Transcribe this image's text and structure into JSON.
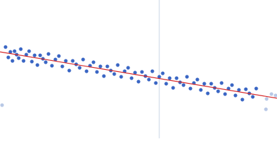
{
  "chart_data": {
    "type": "scatter",
    "xlim": [
      0,
      400
    ],
    "ylim": [
      0,
      200
    ],
    "vline_x": 230,
    "vline_color": "#c8d4e6",
    "series": [
      {
        "color": "#3a66c4",
        "x": [
          8,
          12,
          15,
          18,
          21,
          24,
          27,
          30,
          34,
          38,
          42,
          46,
          50,
          54,
          58,
          62,
          66,
          70,
          75,
          80,
          85,
          90,
          95,
          100,
          105,
          110,
          115,
          120,
          125,
          130,
          135,
          140,
          145,
          150,
          155,
          160,
          165,
          170,
          175,
          180,
          185,
          190,
          195,
          200,
          205,
          210,
          215,
          220,
          225,
          230,
          235,
          240,
          245,
          250,
          255,
          260,
          265,
          270,
          275,
          280,
          285,
          290,
          295,
          300,
          305,
          310,
          315,
          320,
          325,
          330,
          335,
          340,
          345,
          350,
          355,
          360,
          365,
          370
        ],
        "values": [
          132,
          117,
          125,
          112,
          126,
          121,
          116,
          129,
          112,
          121,
          126,
          111,
          120,
          106,
          120,
          115,
          110,
          122,
          105,
          114,
          119,
          104,
          112,
          98,
          112,
          107,
          102,
          114,
          97,
          105,
          110,
          96,
          104,
          90,
          104,
          98,
          93,
          106,
          89,
          97,
          102,
          87,
          95,
          82,
          96,
          90,
          85,
          97,
          80,
          89,
          94,
          79,
          87,
          73,
          87,
          81,
          77,
          89,
          72,
          80,
          85,
          70,
          79,
          65,
          79,
          73,
          68,
          80,
          64,
          72,
          77,
          62,
          70,
          56,
          71,
          65,
          60,
          72
        ]
      },
      {
        "color": "#b8c8e6",
        "x": [
          3,
          384,
          385,
          392,
          398
        ],
        "values": [
          48,
          42,
          57,
          64,
          62
        ]
      }
    ],
    "fit": {
      "x": [
        0,
        400
      ],
      "y": [
        125,
        58
      ],
      "color": "#d62728"
    }
  }
}
